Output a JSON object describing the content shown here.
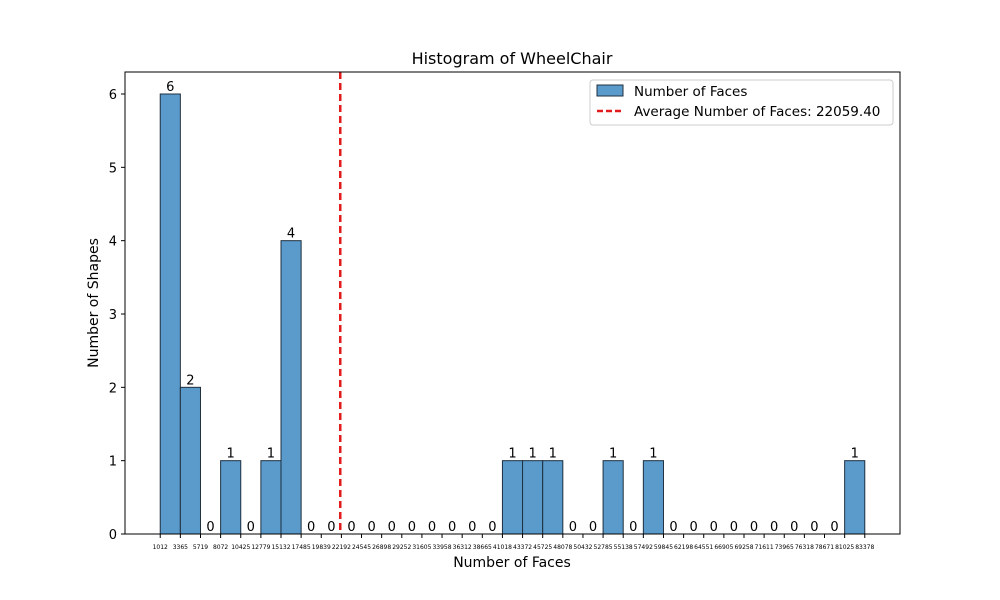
{
  "chart_data": {
    "type": "bar",
    "title": "Histogram of WheelChair",
    "xlabel": "Number of Faces",
    "ylabel": "Number of Shapes",
    "bin_edges": [
      1012,
      3365,
      5719,
      8072,
      10425,
      12779,
      15132,
      17485,
      19839,
      22192,
      24545,
      26898,
      29252,
      31605,
      33958,
      36312,
      38665,
      41018,
      43372,
      45725,
      48078,
      50432,
      52785,
      55138,
      57492,
      59845,
      62198,
      64551,
      66905,
      69258,
      71611,
      73965,
      76318,
      78671,
      81025,
      83378
    ],
    "bin_edge_labels": [
      "1012",
      "3365",
      "5719",
      "8072",
      "10425",
      "12779",
      "15132",
      "17485",
      "19839",
      "22192",
      "24545",
      "26898",
      "29252",
      "31605",
      "33958",
      "36312",
      "38665",
      "41018",
      "43372",
      "45725",
      "48078",
      "50432",
      "52785",
      "55138",
      "57492",
      "59845",
      "62198",
      "64551",
      "66905",
      "69258",
      "71611",
      "73965",
      "76318",
      "78671",
      "81025",
      "83378"
    ],
    "values": [
      6,
      2,
      0,
      1,
      0,
      1,
      4,
      0,
      0,
      0,
      0,
      0,
      0,
      0,
      0,
      0,
      0,
      1,
      1,
      1,
      0,
      0,
      1,
      0,
      1,
      0,
      0,
      0,
      0,
      0,
      0,
      0,
      0,
      0,
      1
    ],
    "value_labels": [
      "6",
      "2",
      "0",
      "1",
      "0",
      "1",
      "4",
      "0",
      "0",
      "0",
      "0",
      "0",
      "0",
      "0",
      "0",
      "0",
      "0",
      "1",
      "1",
      "1",
      "0",
      "0",
      "1",
      "0",
      "1",
      "0",
      "0",
      "0",
      "0",
      "0",
      "0",
      "0",
      "0",
      "0",
      "1"
    ],
    "ylim": [
      0,
      6.3
    ],
    "yticks": [
      0,
      1,
      2,
      3,
      4,
      5,
      6
    ],
    "ytick_labels": [
      "0",
      "1",
      "2",
      "3",
      "4",
      "5",
      "6"
    ],
    "average": 22059.4,
    "legend": {
      "position": "top-right",
      "bar_label": "Number of Faces",
      "line_label": "Average Number of Faces: 22059.40"
    },
    "colors": {
      "bar_fill": "#5b9bcc",
      "bar_edge": "#1f2f3f",
      "average_line": "#e31a1c"
    },
    "grid": false
  }
}
